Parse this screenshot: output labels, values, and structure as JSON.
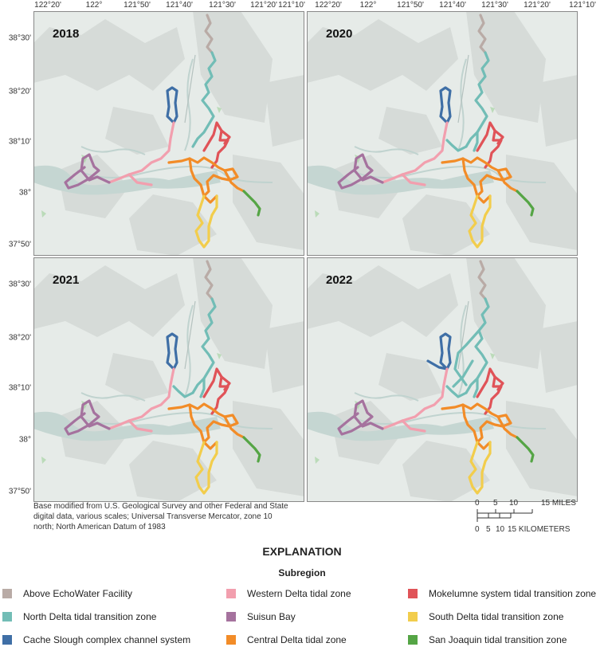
{
  "panels": [
    {
      "year": "2018"
    },
    {
      "year": "2020"
    },
    {
      "year": "2021"
    },
    {
      "year": "2022"
    }
  ],
  "axes": {
    "longitude_labels": [
      "122°20'",
      "122°",
      "121°50'",
      "121°40'",
      "121°30'",
      "121°20'",
      "121°10'"
    ],
    "latitude_labels": [
      "38°30'",
      "38°20'",
      "38°10'",
      "38°",
      "37°50'"
    ]
  },
  "credit": "Base modified from U.S. Geological Survey and other Federal and State digital data, various scales; Universal Transverse Mercator, zone 10 north; North American Datum of 1983",
  "scale": {
    "miles_ticks": [
      "0",
      "5",
      "10",
      "15 MILES"
    ],
    "km_ticks": [
      "0",
      "5",
      "10",
      "15 KILOMETERS"
    ]
  },
  "explanation": {
    "title": "EXPLANATION",
    "subtitle": "Subregion",
    "items": [
      {
        "label": "Above EchoWater Facility",
        "color": "#b9aba6"
      },
      {
        "label": "North Delta tidal transition zone",
        "color": "#72bdb6"
      },
      {
        "label": "Cache Slough complex channel system",
        "color": "#3f6fa6"
      },
      {
        "label": "Western Delta tidal zone",
        "color": "#f29fae"
      },
      {
        "label": "Suisun Bay",
        "color": "#a5729e"
      },
      {
        "label": "Central Delta tidal zone",
        "color": "#f28c28"
      },
      {
        "label": "Mokelumne system tidal transition zone",
        "color": "#e05358"
      },
      {
        "label": "South Delta tidal transition zone",
        "color": "#f2cd4c"
      },
      {
        "label": "San Joaquin tidal transition zone",
        "color": "#55a545"
      }
    ]
  }
}
